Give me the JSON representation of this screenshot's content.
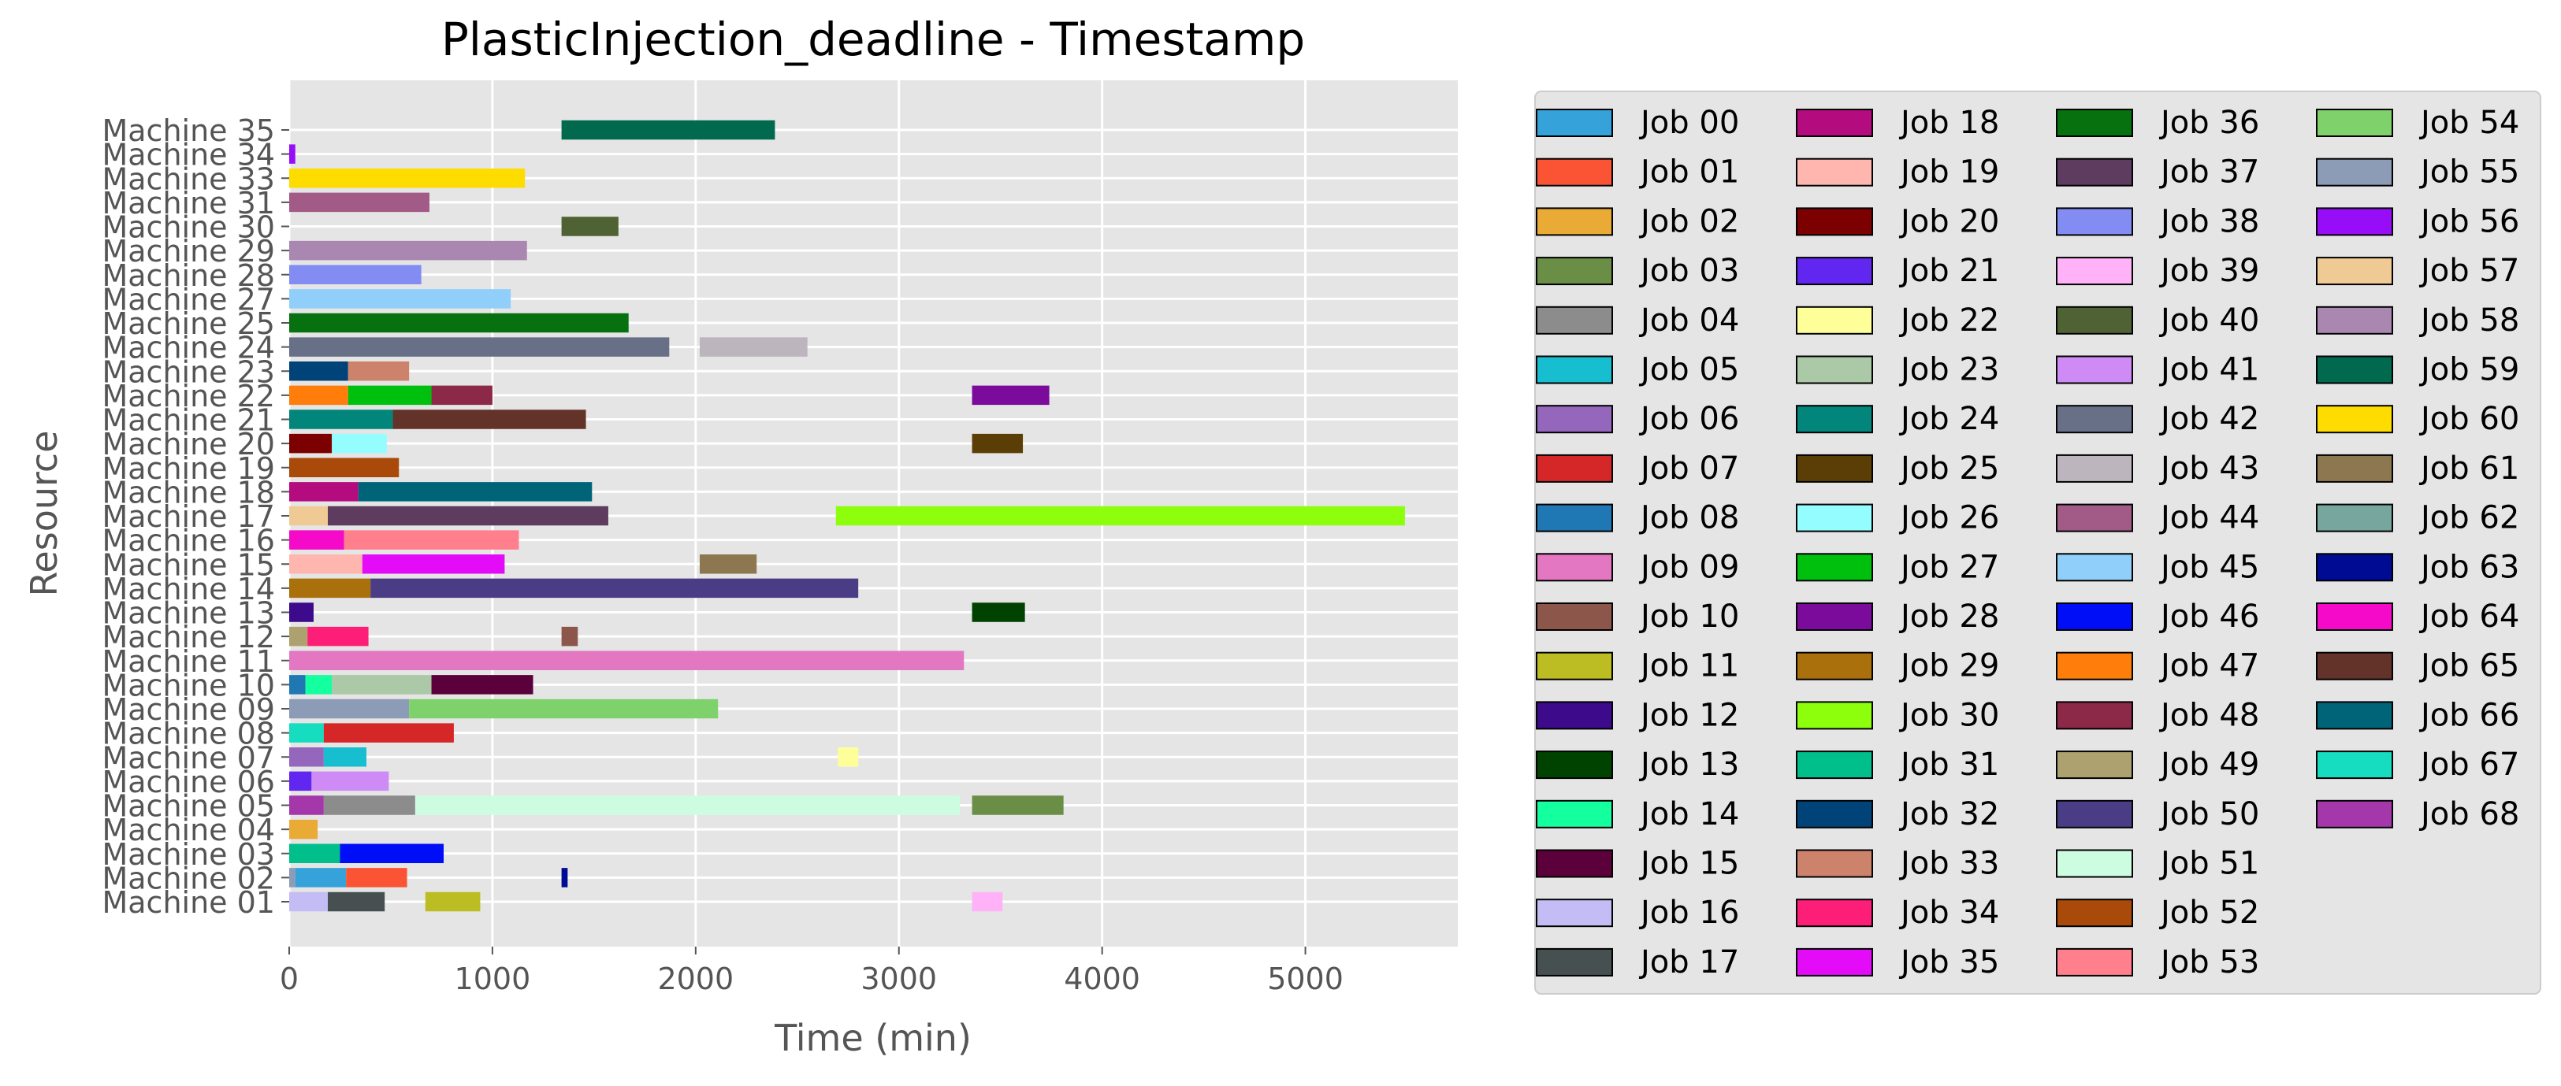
{
  "chart_data": {
    "type": "bar",
    "orientation": "horizontal",
    "gantt": true,
    "title": "PlasticInjection_deadline - Timestamp",
    "xlabel": "Time (min)",
    "ylabel": "Resource",
    "xlim": [
      0,
      5750
    ],
    "xticks": [
      "0",
      "1000",
      "2000",
      "3000",
      "4000",
      "5000"
    ],
    "grid": true,
    "legend_position": "right",
    "resources": [
      "Machine 01",
      "Machine 02",
      "Machine 03",
      "Machine 04",
      "Machine 05",
      "Machine 06",
      "Machine 07",
      "Machine 08",
      "Machine 09",
      "Machine 10",
      "Machine 11",
      "Machine 12",
      "Machine 13",
      "Machine 14",
      "Machine 15",
      "Machine 16",
      "Machine 17",
      "Machine 18",
      "Machine 19",
      "Machine 20",
      "Machine 21",
      "Machine 22",
      "Machine 23",
      "Machine 24",
      "Machine 25",
      "Machine 27",
      "Machine 28",
      "Machine 29",
      "Machine 30",
      "Machine 31",
      "Machine 33",
      "Machine 34",
      "Machine 35"
    ],
    "jobs": [
      {
        "name": "Job 00",
        "color": "#36a2da"
      },
      {
        "name": "Job 01",
        "color": "#fb5434"
      },
      {
        "name": "Job 02",
        "color": "#e9ab36"
      },
      {
        "name": "Job 03",
        "color": "#6b8e46"
      },
      {
        "name": "Job 04",
        "color": "#8c8c8c"
      },
      {
        "name": "Job 05",
        "color": "#17becf"
      },
      {
        "name": "Job 06",
        "color": "#9467bd"
      },
      {
        "name": "Job 07",
        "color": "#d62728"
      },
      {
        "name": "Job 08",
        "color": "#1f77b4"
      },
      {
        "name": "Job 09",
        "color": "#e377c2"
      },
      {
        "name": "Job 10",
        "color": "#8c564b"
      },
      {
        "name": "Job 11",
        "color": "#bcbd22"
      },
      {
        "name": "Job 12",
        "color": "#3c0a8a"
      },
      {
        "name": "Job 13",
        "color": "#004200"
      },
      {
        "name": "Job 14",
        "color": "#14ff9e"
      },
      {
        "name": "Job 15",
        "color": "#5b003a"
      },
      {
        "name": "Job 16",
        "color": "#c3bcf5"
      },
      {
        "name": "Job 17",
        "color": "#465050"
      },
      {
        "name": "Job 18",
        "color": "#b40b7e"
      },
      {
        "name": "Job 19",
        "color": "#ffb6ae"
      },
      {
        "name": "Job 20",
        "color": "#7c0000"
      },
      {
        "name": "Job 21",
        "color": "#6126f0"
      },
      {
        "name": "Job 22",
        "color": "#ffff99"
      },
      {
        "name": "Job 23",
        "color": "#abc8a7"
      },
      {
        "name": "Job 24",
        "color": "#02857a"
      },
      {
        "name": "Job 25",
        "color": "#5a3e06"
      },
      {
        "name": "Job 26",
        "color": "#93fdff"
      },
      {
        "name": "Job 27",
        "color": "#00c00e"
      },
      {
        "name": "Job 28",
        "color": "#7a0b9b"
      },
      {
        "name": "Job 29",
        "color": "#a9700b"
      },
      {
        "name": "Job 30",
        "color": "#8dfe0c"
      },
      {
        "name": "Job 31",
        "color": "#00bf8a"
      },
      {
        "name": "Job 32",
        "color": "#004378"
      },
      {
        "name": "Job 33",
        "color": "#cd826c"
      },
      {
        "name": "Job 34",
        "color": "#fd1e78"
      },
      {
        "name": "Job 35",
        "color": "#e30bf8"
      },
      {
        "name": "Job 36",
        "color": "#08710f"
      },
      {
        "name": "Job 37",
        "color": "#5d3c5f"
      },
      {
        "name": "Job 38",
        "color": "#828cf3"
      },
      {
        "name": "Job 39",
        "color": "#ffb2f7"
      },
      {
        "name": "Job 40",
        "color": "#4f6234"
      },
      {
        "name": "Job 41",
        "color": "#cf8bf5"
      },
      {
        "name": "Job 42",
        "color": "#687088"
      },
      {
        "name": "Job 43",
        "color": "#bdb5bd"
      },
      {
        "name": "Job 44",
        "color": "#a25a86"
      },
      {
        "name": "Job 45",
        "color": "#90cff9"
      },
      {
        "name": "Job 46",
        "color": "#000df7"
      },
      {
        "name": "Job 47",
        "color": "#ff7d0b"
      },
      {
        "name": "Job 48",
        "color": "#8c2848"
      },
      {
        "name": "Job 49",
        "color": "#ada26f"
      },
      {
        "name": "Job 50",
        "color": "#4a3d86"
      },
      {
        "name": "Job 51",
        "color": "#cdfde0"
      },
      {
        "name": "Job 52",
        "color": "#a94a0b"
      },
      {
        "name": "Job 53",
        "color": "#ff7f8c"
      },
      {
        "name": "Job 54",
        "color": "#7fd16b"
      },
      {
        "name": "Job 55",
        "color": "#8c9bb6"
      },
      {
        "name": "Job 56",
        "color": "#970df7"
      },
      {
        "name": "Job 57",
        "color": "#efca95"
      },
      {
        "name": "Job 58",
        "color": "#aa87b1"
      },
      {
        "name": "Job 59",
        "color": "#00694e"
      },
      {
        "name": "Job 60",
        "color": "#ffdc00"
      },
      {
        "name": "Job 61",
        "color": "#8c7751"
      },
      {
        "name": "Job 62",
        "color": "#77a69e"
      },
      {
        "name": "Job 63",
        "color": "#000b93"
      },
      {
        "name": "Job 64",
        "color": "#f40ac8"
      },
      {
        "name": "Job 65",
        "color": "#633229"
      },
      {
        "name": "Job 66",
        "color": "#006478"
      },
      {
        "name": "Job 67",
        "color": "#16dcc0"
      },
      {
        "name": "Job 68",
        "color": "#a438aa"
      }
    ],
    "tasks": [
      {
        "resource": "Machine 01",
        "job": "Job 16",
        "start": 0,
        "end": 190
      },
      {
        "resource": "Machine 01",
        "job": "Job 17",
        "start": 190,
        "end": 470
      },
      {
        "resource": "Machine 01",
        "job": "Job 11",
        "start": 670,
        "end": 940
      },
      {
        "resource": "Machine 01",
        "job": "Job 39",
        "start": 3360,
        "end": 3510
      },
      {
        "resource": "Machine 02",
        "job": "Job 55",
        "start": 0,
        "end": 30
      },
      {
        "resource": "Machine 02",
        "job": "Job 00",
        "start": 30,
        "end": 280
      },
      {
        "resource": "Machine 02",
        "job": "Job 01",
        "start": 280,
        "end": 580
      },
      {
        "resource": "Machine 02",
        "job": "Job 63",
        "start": 1340,
        "end": 1370
      },
      {
        "resource": "Machine 03",
        "job": "Job 31",
        "start": 0,
        "end": 250
      },
      {
        "resource": "Machine 03",
        "job": "Job 46",
        "start": 250,
        "end": 760
      },
      {
        "resource": "Machine 04",
        "job": "Job 02",
        "start": 0,
        "end": 140
      },
      {
        "resource": "Machine 05",
        "job": "Job 68",
        "start": 0,
        "end": 170
      },
      {
        "resource": "Machine 05",
        "job": "Job 04",
        "start": 170,
        "end": 620
      },
      {
        "resource": "Machine 05",
        "job": "Job 51",
        "start": 620,
        "end": 3300
      },
      {
        "resource": "Machine 05",
        "job": "Job 03",
        "start": 3360,
        "end": 3810
      },
      {
        "resource": "Machine 06",
        "job": "Job 21",
        "start": 0,
        "end": 110
      },
      {
        "resource": "Machine 06",
        "job": "Job 41",
        "start": 110,
        "end": 490
      },
      {
        "resource": "Machine 07",
        "job": "Job 06",
        "start": 0,
        "end": 170
      },
      {
        "resource": "Machine 07",
        "job": "Job 05",
        "start": 170,
        "end": 380
      },
      {
        "resource": "Machine 07",
        "job": "Job 22",
        "start": 2700,
        "end": 2800
      },
      {
        "resource": "Machine 08",
        "job": "Job 67",
        "start": 0,
        "end": 170
      },
      {
        "resource": "Machine 08",
        "job": "Job 07",
        "start": 170,
        "end": 810
      },
      {
        "resource": "Machine 09",
        "job": "Job 55",
        "start": 0,
        "end": 590
      },
      {
        "resource": "Machine 09",
        "job": "Job 54",
        "start": 590,
        "end": 2110
      },
      {
        "resource": "Machine 10",
        "job": "Job 08",
        "start": 0,
        "end": 80
      },
      {
        "resource": "Machine 10",
        "job": "Job 14",
        "start": 80,
        "end": 210
      },
      {
        "resource": "Machine 10",
        "job": "Job 23",
        "start": 210,
        "end": 700
      },
      {
        "resource": "Machine 10",
        "job": "Job 15",
        "start": 700,
        "end": 1200
      },
      {
        "resource": "Machine 11",
        "job": "Job 09",
        "start": 0,
        "end": 3320
      },
      {
        "resource": "Machine 12",
        "job": "Job 49",
        "start": 0,
        "end": 90
      },
      {
        "resource": "Machine 12",
        "job": "Job 34",
        "start": 90,
        "end": 390
      },
      {
        "resource": "Machine 12",
        "job": "Job 10",
        "start": 1340,
        "end": 1420
      },
      {
        "resource": "Machine 13",
        "job": "Job 12",
        "start": 0,
        "end": 120
      },
      {
        "resource": "Machine 13",
        "job": "Job 13",
        "start": 3360,
        "end": 3620
      },
      {
        "resource": "Machine 14",
        "job": "Job 29",
        "start": 0,
        "end": 400
      },
      {
        "resource": "Machine 14",
        "job": "Job 50",
        "start": 400,
        "end": 2800
      },
      {
        "resource": "Machine 15",
        "job": "Job 19",
        "start": 0,
        "end": 360
      },
      {
        "resource": "Machine 15",
        "job": "Job 35",
        "start": 360,
        "end": 1060
      },
      {
        "resource": "Machine 15",
        "job": "Job 61",
        "start": 2020,
        "end": 2300
      },
      {
        "resource": "Machine 16",
        "job": "Job 64",
        "start": 0,
        "end": 270
      },
      {
        "resource": "Machine 16",
        "job": "Job 53",
        "start": 270,
        "end": 1130
      },
      {
        "resource": "Machine 17",
        "job": "Job 57",
        "start": 0,
        "end": 190
      },
      {
        "resource": "Machine 17",
        "job": "Job 37",
        "start": 190,
        "end": 1570
      },
      {
        "resource": "Machine 17",
        "job": "Job 30",
        "start": 2690,
        "end": 5490
      },
      {
        "resource": "Machine 18",
        "job": "Job 18",
        "start": 0,
        "end": 340
      },
      {
        "resource": "Machine 18",
        "job": "Job 66",
        "start": 340,
        "end": 1490
      },
      {
        "resource": "Machine 19",
        "job": "Job 52",
        "start": 0,
        "end": 540
      },
      {
        "resource": "Machine 20",
        "job": "Job 20",
        "start": 0,
        "end": 210
      },
      {
        "resource": "Machine 20",
        "job": "Job 26",
        "start": 210,
        "end": 480
      },
      {
        "resource": "Machine 20",
        "job": "Job 25",
        "start": 3360,
        "end": 3610
      },
      {
        "resource": "Machine 21",
        "job": "Job 24",
        "start": 0,
        "end": 510
      },
      {
        "resource": "Machine 21",
        "job": "Job 65",
        "start": 510,
        "end": 1460
      },
      {
        "resource": "Machine 22",
        "job": "Job 47",
        "start": 0,
        "end": 290
      },
      {
        "resource": "Machine 22",
        "job": "Job 27",
        "start": 290,
        "end": 700
      },
      {
        "resource": "Machine 22",
        "job": "Job 48",
        "start": 700,
        "end": 1000
      },
      {
        "resource": "Machine 22",
        "job": "Job 28",
        "start": 3360,
        "end": 3740
      },
      {
        "resource": "Machine 23",
        "job": "Job 32",
        "start": 0,
        "end": 290
      },
      {
        "resource": "Machine 23",
        "job": "Job 33",
        "start": 290,
        "end": 590
      },
      {
        "resource": "Machine 24",
        "job": "Job 42",
        "start": 0,
        "end": 1870
      },
      {
        "resource": "Machine 24",
        "job": "Job 43",
        "start": 2020,
        "end": 2550
      },
      {
        "resource": "Machine 25",
        "job": "Job 36",
        "start": 0,
        "end": 1670
      },
      {
        "resource": "Machine 27",
        "job": "Job 45",
        "start": 0,
        "end": 1090
      },
      {
        "resource": "Machine 28",
        "job": "Job 38",
        "start": 0,
        "end": 650
      },
      {
        "resource": "Machine 29",
        "job": "Job 58",
        "start": 0,
        "end": 1170
      },
      {
        "resource": "Machine 30",
        "job": "Job 40",
        "start": 1340,
        "end": 1620
      },
      {
        "resource": "Machine 31",
        "job": "Job 44",
        "start": 0,
        "end": 690
      },
      {
        "resource": "Machine 33",
        "job": "Job 60",
        "start": 0,
        "end": 1160
      },
      {
        "resource": "Machine 34",
        "job": "Job 56",
        "start": 0,
        "end": 30
      },
      {
        "resource": "Machine 35",
        "job": "Job 59",
        "start": 1340,
        "end": 2390
      }
    ]
  }
}
